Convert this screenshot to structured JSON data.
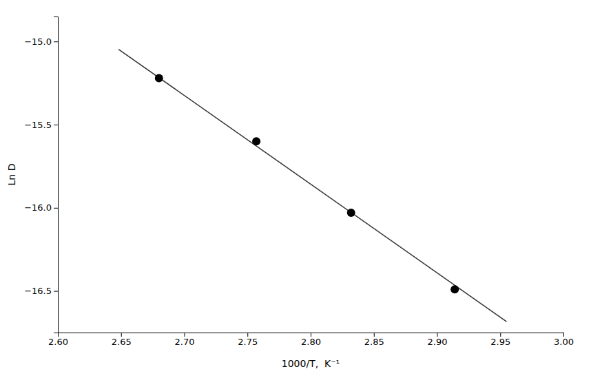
{
  "chart_data": {
    "type": "scatter",
    "xlabel": "1000/T,  K⁻¹",
    "ylabel": "Ln D",
    "xlim": [
      2.6,
      3.0
    ],
    "xticks": [
      {
        "value": 2.6,
        "label": "2.60"
      },
      {
        "value": 2.65,
        "label": "2.65"
      },
      {
        "value": 2.7,
        "label": "2.70"
      },
      {
        "value": 2.75,
        "label": "2.75"
      },
      {
        "value": 2.8,
        "label": "2.80"
      },
      {
        "value": 2.85,
        "label": "2.85"
      },
      {
        "value": 2.9,
        "label": "2.90"
      },
      {
        "value": 2.95,
        "label": "2.95"
      },
      {
        "value": 3.0,
        "label": "3.00"
      }
    ],
    "ylim": [
      -16.75,
      -14.85
    ],
    "yticks": [
      {
        "value": -16.5,
        "label": "−16.5"
      },
      {
        "value": -16.0,
        "label": "−16.0"
      },
      {
        "value": -15.5,
        "label": "−15.5"
      },
      {
        "value": -15.0,
        "label": "−15.0"
      }
    ],
    "series": [
      {
        "type": "line",
        "color": "#333333",
        "x": [
          2.648,
          2.955
        ],
        "values": [
          -15.04704925,
          -16.68428025
        ]
      },
      {
        "type": "scatter",
        "color": "#000000",
        "x": [
          2.68,
          2.757,
          2.832,
          2.914
        ],
        "values": [
          -15.22,
          -15.6,
          -16.03,
          -16.49
        ]
      }
    ]
  }
}
